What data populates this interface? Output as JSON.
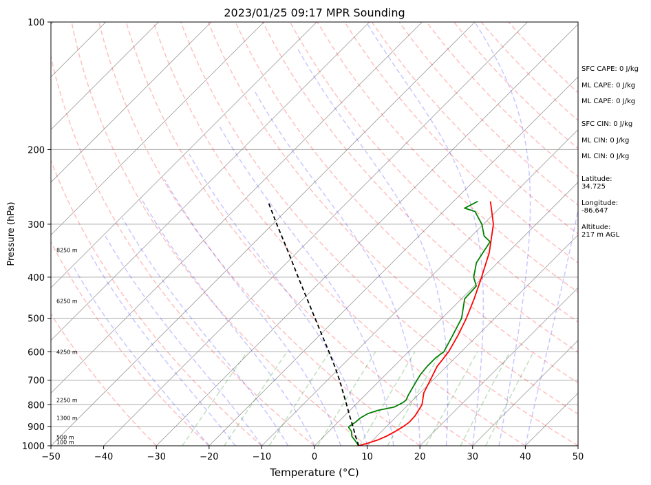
{
  "chart_data": {
    "type": "line",
    "title": "2023/01/25 09:17 MPR Sounding",
    "xlabel": "Temperature (°C)",
    "ylabel": "Pressure (hPa)",
    "xlim": [
      -50,
      50
    ],
    "ylim": [
      1000,
      100
    ],
    "y_scale": "log",
    "skew": true,
    "grid": true,
    "x_ticks": [
      -50,
      -40,
      -30,
      -20,
      -10,
      0,
      10,
      20,
      30,
      40,
      50
    ],
    "x_tick_labels": [
      "−50",
      "−40",
      "−30",
      "−20",
      "−10",
      "0",
      "10",
      "20",
      "30",
      "40",
      "50"
    ],
    "y_ticks": [
      1000,
      900,
      800,
      700,
      600,
      500,
      400,
      300,
      200,
      100
    ],
    "y_tick_labels": [
      "1000",
      "900",
      "800",
      "700",
      "600",
      "500",
      "400",
      "300",
      "200",
      "100"
    ],
    "height_labels": [
      {
        "p": 980,
        "text": "100 m"
      },
      {
        "p": 955,
        "text": "500 m"
      },
      {
        "p": 860,
        "text": "1300 m"
      },
      {
        "p": 780,
        "text": "2250 m"
      },
      {
        "p": 600,
        "text": "4250 m"
      },
      {
        "p": 455,
        "text": "6250 m"
      },
      {
        "p": 345,
        "text": "8250 m"
      }
    ],
    "series": [
      {
        "color": "#ff0000",
        "points": [
          [
            1000,
            8.4
          ],
          [
            990,
            9.3
          ],
          [
            970,
            10.8
          ],
          [
            950,
            11.8
          ],
          [
            925,
            12.6
          ],
          [
            900,
            13.2
          ],
          [
            880,
            13.5
          ],
          [
            850,
            13.4
          ],
          [
            800,
            12.6
          ],
          [
            750,
            10.7
          ],
          [
            700,
            9.5
          ],
          [
            650,
            8.2
          ],
          [
            600,
            7.6
          ],
          [
            550,
            6.3
          ],
          [
            500,
            4.6
          ],
          [
            450,
            2.4
          ],
          [
            400,
            -0.3
          ],
          [
            350,
            -3.5
          ],
          [
            300,
            -8.1
          ],
          [
            265,
            -13.0
          ]
        ]
      },
      {
        "color": "#008000",
        "points": [
          [
            1000,
            8.3
          ],
          [
            990,
            7.8
          ],
          [
            970,
            6.6
          ],
          [
            950,
            5.3
          ],
          [
            925,
            4.3
          ],
          [
            905,
            3.0
          ],
          [
            900,
            2.9
          ],
          [
            880,
            3.3
          ],
          [
            860,
            3.4
          ],
          [
            840,
            4.0
          ],
          [
            825,
            5.3
          ],
          [
            810,
            7.8
          ],
          [
            790,
            8.6
          ],
          [
            780,
            8.7
          ],
          [
            760,
            8.2
          ],
          [
            740,
            7.8
          ],
          [
            720,
            7.4
          ],
          [
            700,
            7.0
          ],
          [
            680,
            6.6
          ],
          [
            650,
            6.3
          ],
          [
            620,
            6.3
          ],
          [
            600,
            6.7
          ],
          [
            550,
            5.3
          ],
          [
            500,
            3.7
          ],
          [
            450,
            0.6
          ],
          [
            420,
            0.4
          ],
          [
            400,
            -1.8
          ],
          [
            370,
            -4.0
          ],
          [
            350,
            -4.7
          ],
          [
            330,
            -5.4
          ],
          [
            320,
            -7.6
          ],
          [
            300,
            -10.3
          ],
          [
            280,
            -14.0
          ],
          [
            275,
            -16.6
          ],
          [
            265,
            -15.4
          ]
        ]
      },
      {
        "color": "#000000",
        "dashed": true,
        "points": [
          [
            1000,
            8.4
          ],
          [
            950,
            6.0
          ],
          [
            900,
            3.6
          ],
          [
            850,
            1.0
          ],
          [
            800,
            -1.7
          ],
          [
            750,
            -4.6
          ],
          [
            700,
            -7.7
          ],
          [
            650,
            -11.2
          ],
          [
            600,
            -15.1
          ],
          [
            550,
            -19.4
          ],
          [
            500,
            -24.1
          ],
          [
            450,
            -29.3
          ],
          [
            400,
            -35.1
          ],
          [
            350,
            -41.6
          ],
          [
            300,
            -49.2
          ],
          [
            265,
            -55.2
          ]
        ]
      }
    ],
    "annotations": [
      "SFC CAPE: 0 J/kg",
      "ML CAPE: 0 J/kg",
      "ML CAPE: 0 J/kg",
      "SFC CIN: 0 J/kg",
      "ML CIN: 0 J/kg",
      "ML CIN: 0 J/kg",
      "Latitude:\n34.725",
      "Longitude:\n-86.647",
      "Altitude:\n217 m AGL"
    ]
  }
}
